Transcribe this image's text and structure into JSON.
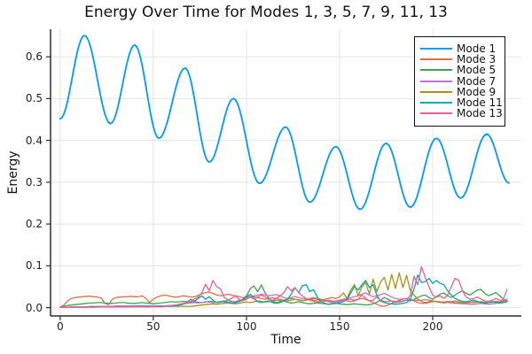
{
  "chart_data": {
    "type": "line",
    "title": "Energy Over Time for Modes 1, 3, 5, 7, 9, 11, 13",
    "xlabel": "Time",
    "ylabel": "Energy",
    "xlim": [
      -5.2,
      247.6
    ],
    "ylim": [
      -0.02,
      0.666
    ],
    "grid": true,
    "legend_position": "top-right",
    "background": "#FFFFFF",
    "colors": {
      "grid": "#E4E4E4",
      "axis": "#2E2E2E",
      "text": "#111111"
    },
    "xticks": {
      "values": [
        0,
        50,
        100,
        150,
        200
      ],
      "labels": [
        "0",
        "50",
        "100",
        "150",
        "200"
      ]
    },
    "yticks": {
      "values": [
        0.0,
        0.1,
        0.2,
        0.3,
        0.4,
        0.5,
        0.6
      ],
      "labels": [
        "0.0",
        "0.1",
        "0.2",
        "0.3",
        "0.4",
        "0.5",
        "0.6"
      ]
    },
    "x_grid": {
      "start": 0,
      "step": 2,
      "count": 121
    },
    "series": [
      {
        "name": "Mode 1",
        "color": "#009AFA",
        "shape": "smooth-decaying-oscillation",
        "extrema": [
          [
            0,
            0.452
          ],
          [
            13,
            0.651
          ],
          [
            27,
            0.44
          ],
          [
            40,
            0.628
          ],
          [
            53,
            0.405
          ],
          [
            67,
            0.573
          ],
          [
            80,
            0.348
          ],
          [
            93,
            0.5
          ],
          [
            107,
            0.297
          ],
          [
            121,
            0.432
          ],
          [
            134,
            0.252
          ],
          [
            148,
            0.385
          ],
          [
            161,
            0.235
          ],
          [
            175,
            0.393
          ],
          [
            188,
            0.24
          ],
          [
            202,
            0.405
          ],
          [
            215,
            0.262
          ],
          [
            229,
            0.415
          ],
          [
            241,
            0.298
          ]
        ]
      },
      {
        "name": "Mode 3",
        "color": "#E36F47",
        "y": [
          0.001,
          0.006,
          0.016,
          0.022,
          0.024,
          0.025,
          0.026,
          0.027,
          0.027,
          0.026,
          0.025,
          0.023,
          0.01,
          0.007,
          0.02,
          0.024,
          0.025,
          0.026,
          0.026,
          0.027,
          0.026,
          0.026,
          0.028,
          0.022,
          0.012,
          0.02,
          0.025,
          0.028,
          0.03,
          0.028,
          0.026,
          0.025,
          0.026,
          0.028,
          0.027,
          0.025,
          0.026,
          0.029,
          0.033,
          0.036,
          0.037,
          0.034,
          0.03,
          0.028,
          0.03,
          0.032,
          0.03,
          0.028,
          0.026,
          0.024,
          0.025,
          0.027,
          0.026,
          0.024,
          0.022,
          0.02,
          0.022,
          0.024,
          0.022,
          0.02,
          0.018,
          0.02,
          0.022,
          0.02,
          0.018,
          0.016,
          0.018,
          0.02,
          0.018,
          0.016,
          0.015,
          0.016,
          0.018,
          0.016,
          0.014,
          0.015,
          0.017,
          0.019,
          0.02,
          0.018,
          0.02,
          0.022,
          0.02,
          0.016,
          0.012,
          0.008,
          0.004,
          0.003,
          0.006,
          0.01,
          0.014,
          0.017,
          0.02,
          0.022,
          0.02,
          0.016,
          0.012,
          0.01,
          0.01,
          0.012,
          0.014,
          0.015,
          0.013,
          0.011,
          0.012,
          0.014,
          0.016,
          0.014,
          0.012,
          0.011,
          0.012,
          0.014,
          0.013,
          0.012,
          0.011,
          0.012,
          0.014,
          0.015,
          0.014,
          0.016,
          0.018
        ]
      },
      {
        "name": "Mode 5",
        "color": "#3EA44E",
        "y": [
          0.001,
          0.003,
          0.005,
          0.006,
          0.007,
          0.008,
          0.009,
          0.01,
          0.011,
          0.011,
          0.012,
          0.012,
          0.011,
          0.01,
          0.01,
          0.011,
          0.012,
          0.012,
          0.011,
          0.01,
          0.01,
          0.011,
          0.012,
          0.011,
          0.01,
          0.009,
          0.01,
          0.011,
          0.012,
          0.013,
          0.014,
          0.013,
          0.014,
          0.015,
          0.014,
          0.013,
          0.014,
          0.013,
          0.012,
          0.013,
          0.015,
          0.014,
          0.012,
          0.013,
          0.015,
          0.017,
          0.015,
          0.013,
          0.015,
          0.02,
          0.028,
          0.045,
          0.052,
          0.038,
          0.054,
          0.035,
          0.022,
          0.015,
          0.012,
          0.014,
          0.016,
          0.013,
          0.011,
          0.012,
          0.014,
          0.012,
          0.01,
          0.009,
          0.01,
          0.011,
          0.01,
          0.009,
          0.008,
          0.009,
          0.01,
          0.009,
          0.008,
          0.007,
          0.008,
          0.009,
          0.008,
          0.007,
          0.006,
          0.007,
          0.009,
          0.013,
          0.018,
          0.024,
          0.02,
          0.015,
          0.012,
          0.014,
          0.016,
          0.018,
          0.016,
          0.02,
          0.024,
          0.028,
          0.03,
          0.024,
          0.02,
          0.026,
          0.032,
          0.035,
          0.028,
          0.024,
          0.03,
          0.036,
          0.04,
          0.034,
          0.03,
          0.036,
          0.042,
          0.043,
          0.034,
          0.028,
          0.032,
          0.036,
          0.028,
          0.02,
          0.015
        ]
      },
      {
        "name": "Mode 7",
        "color": "#C371D2",
        "y": [
          0.001,
          0.001,
          0.001,
          0.002,
          0.002,
          0.002,
          0.002,
          0.002,
          0.003,
          0.003,
          0.003,
          0.003,
          0.003,
          0.003,
          0.003,
          0.004,
          0.004,
          0.004,
          0.004,
          0.004,
          0.004,
          0.004,
          0.004,
          0.004,
          0.004,
          0.004,
          0.004,
          0.004,
          0.004,
          0.005,
          0.005,
          0.006,
          0.008,
          0.009,
          0.01,
          0.011,
          0.012,
          0.011,
          0.012,
          0.014,
          0.013,
          0.012,
          0.013,
          0.014,
          0.013,
          0.012,
          0.013,
          0.015,
          0.017,
          0.019,
          0.022,
          0.025,
          0.028,
          0.03,
          0.032,
          0.03,
          0.028,
          0.03,
          0.031,
          0.028,
          0.024,
          0.022,
          0.024,
          0.026,
          0.024,
          0.022,
          0.02,
          0.022,
          0.024,
          0.022,
          0.02,
          0.018,
          0.016,
          0.015,
          0.016,
          0.018,
          0.02,
          0.022,
          0.024,
          0.026,
          0.028,
          0.032,
          0.035,
          0.03,
          0.026,
          0.028,
          0.031,
          0.034,
          0.03,
          0.025,
          0.022,
          0.02,
          0.021,
          0.022,
          0.02,
          0.018,
          0.017,
          0.018,
          0.019,
          0.018,
          0.016,
          0.015,
          0.014,
          0.013,
          0.012,
          0.011,
          0.01,
          0.01,
          0.009,
          0.009,
          0.008,
          0.008,
          0.009,
          0.01,
          0.009,
          0.008,
          0.009,
          0.01,
          0.012,
          0.02,
          0.044
        ]
      },
      {
        "name": "Mode 9",
        "color": "#AC8E18",
        "y": [
          0.001,
          0.001,
          0.001,
          0.001,
          0.001,
          0.001,
          0.001,
          0.001,
          0.001,
          0.001,
          0.001,
          0.002,
          0.002,
          0.002,
          0.002,
          0.002,
          0.002,
          0.002,
          0.002,
          0.002,
          0.002,
          0.002,
          0.002,
          0.002,
          0.002,
          0.003,
          0.003,
          0.003,
          0.003,
          0.003,
          0.003,
          0.003,
          0.003,
          0.003,
          0.003,
          0.003,
          0.004,
          0.005,
          0.006,
          0.007,
          0.008,
          0.009,
          0.008,
          0.009,
          0.01,
          0.011,
          0.01,
          0.009,
          0.01,
          0.012,
          0.013,
          0.012,
          0.014,
          0.016,
          0.015,
          0.013,
          0.014,
          0.016,
          0.018,
          0.017,
          0.015,
          0.016,
          0.018,
          0.02,
          0.019,
          0.017,
          0.018,
          0.02,
          0.022,
          0.02,
          0.018,
          0.02,
          0.022,
          0.024,
          0.022,
          0.025,
          0.035,
          0.022,
          0.042,
          0.055,
          0.028,
          0.05,
          0.06,
          0.032,
          0.068,
          0.038,
          0.061,
          0.072,
          0.042,
          0.079,
          0.046,
          0.083,
          0.048,
          0.077,
          0.04,
          0.03,
          0.02,
          0.015,
          0.012,
          0.014,
          0.016,
          0.014,
          0.012,
          0.013,
          0.015,
          0.014,
          0.012,
          0.011,
          0.012,
          0.014,
          0.013,
          0.012,
          0.013,
          0.014,
          0.013,
          0.012,
          0.013,
          0.014,
          0.013,
          0.014,
          0.015
        ]
      },
      {
        "name": "Mode 11",
        "color": "#00AAAE",
        "y": [
          0.001,
          0.001,
          0.001,
          0.001,
          0.001,
          0.001,
          0.001,
          0.001,
          0.002,
          0.002,
          0.002,
          0.002,
          0.002,
          0.002,
          0.002,
          0.002,
          0.002,
          0.002,
          0.002,
          0.002,
          0.003,
          0.003,
          0.003,
          0.003,
          0.003,
          0.003,
          0.003,
          0.003,
          0.003,
          0.003,
          0.003,
          0.004,
          0.006,
          0.008,
          0.012,
          0.02,
          0.015,
          0.022,
          0.028,
          0.02,
          0.026,
          0.018,
          0.012,
          0.014,
          0.016,
          0.012,
          0.01,
          0.012,
          0.014,
          0.018,
          0.026,
          0.032,
          0.022,
          0.014,
          0.012,
          0.014,
          0.016,
          0.012,
          0.01,
          0.012,
          0.016,
          0.02,
          0.032,
          0.048,
          0.036,
          0.052,
          0.055,
          0.038,
          0.043,
          0.025,
          0.015,
          0.01,
          0.008,
          0.009,
          0.01,
          0.012,
          0.014,
          0.02,
          0.035,
          0.05,
          0.042,
          0.055,
          0.065,
          0.048,
          0.055,
          0.03,
          0.016,
          0.012,
          0.01,
          0.009,
          0.008,
          0.009,
          0.01,
          0.012,
          0.02,
          0.045,
          0.078,
          0.06,
          0.062,
          0.07,
          0.058,
          0.065,
          0.058,
          0.055,
          0.04,
          0.03,
          0.022,
          0.018,
          0.015,
          0.014,
          0.016,
          0.018,
          0.015,
          0.012,
          0.01,
          0.012,
          0.014,
          0.012,
          0.01,
          0.012,
          0.014
        ]
      },
      {
        "name": "Mode 13",
        "color": "#ED5E93",
        "y": [
          0.001,
          0.001,
          0.001,
          0.001,
          0.001,
          0.001,
          0.001,
          0.001,
          0.001,
          0.001,
          0.002,
          0.002,
          0.002,
          0.002,
          0.002,
          0.002,
          0.002,
          0.002,
          0.002,
          0.002,
          0.002,
          0.002,
          0.002,
          0.002,
          0.002,
          0.002,
          0.002,
          0.002,
          0.003,
          0.004,
          0.005,
          0.006,
          0.008,
          0.01,
          0.012,
          0.015,
          0.02,
          0.025,
          0.035,
          0.056,
          0.04,
          0.065,
          0.05,
          0.045,
          0.025,
          0.018,
          0.022,
          0.028,
          0.02,
          0.016,
          0.02,
          0.025,
          0.02,
          0.025,
          0.03,
          0.025,
          0.02,
          0.018,
          0.022,
          0.028,
          0.035,
          0.05,
          0.04,
          0.048,
          0.036,
          0.028,
          0.022,
          0.018,
          0.015,
          0.012,
          0.014,
          0.016,
          0.014,
          0.012,
          0.013,
          0.015,
          0.018,
          0.016,
          0.014,
          0.016,
          0.02,
          0.03,
          0.022,
          0.016,
          0.018,
          0.025,
          0.018,
          0.014,
          0.015,
          0.016,
          0.014,
          0.013,
          0.015,
          0.018,
          0.03,
          0.075,
          0.055,
          0.098,
          0.072,
          0.05,
          0.03,
          0.025,
          0.028,
          0.022,
          0.03,
          0.05,
          0.07,
          0.065,
          0.04,
          0.025,
          0.02,
          0.022,
          0.025,
          0.02,
          0.016,
          0.015,
          0.018,
          0.022,
          0.018,
          0.015,
          0.02
        ]
      }
    ]
  }
}
